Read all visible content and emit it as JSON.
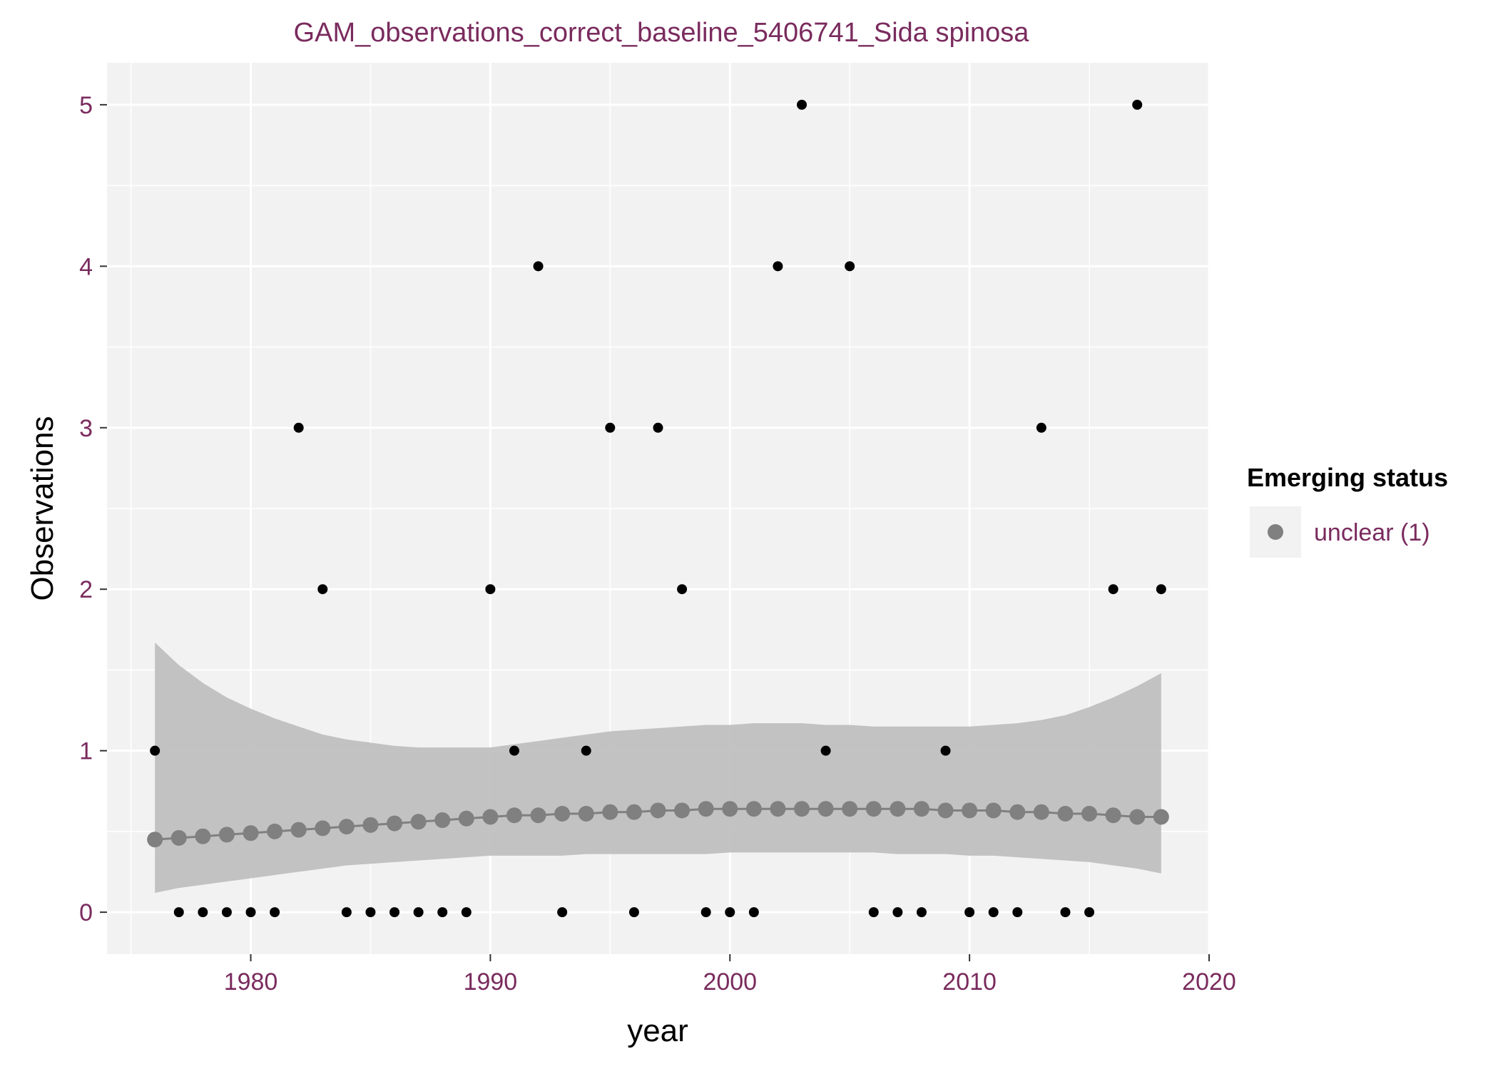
{
  "chart_data": {
    "type": "scatter",
    "title": "GAM_observations_correct_baseline_5406741_Sida spinosa",
    "xlabel": "year",
    "ylabel": "Observations",
    "xlim": [
      1974,
      2020
    ],
    "ylim": [
      -0.26,
      5.26
    ],
    "x_ticks": [
      1980,
      1990,
      2000,
      2010,
      2020
    ],
    "y_ticks": [
      0,
      1,
      2,
      3,
      4,
      5
    ],
    "grid": true,
    "legend": {
      "title": "Emerging status",
      "entries": [
        "unclear (1)"
      ],
      "placement": "right"
    },
    "colors": {
      "panel": "#f2f2f2",
      "grid": "#ffffff",
      "points": "#000000",
      "fit": "#808080",
      "ribbon": "#bdbdbd",
      "text_accent": "#7a2b5e"
    },
    "observations": {
      "x": [
        1976,
        1977,
        1978,
        1979,
        1980,
        1981,
        1982,
        1983,
        1984,
        1985,
        1986,
        1987,
        1988,
        1989,
        1990,
        1991,
        1992,
        1993,
        1994,
        1995,
        1996,
        1997,
        1998,
        1999,
        2000,
        2001,
        2002,
        2003,
        2004,
        2005,
        2006,
        2007,
        2008,
        2009,
        2010,
        2011,
        2012,
        2013,
        2014,
        2015,
        2016,
        2017,
        2018
      ],
      "y": [
        1,
        0,
        0,
        0,
        0,
        0,
        3,
        2,
        0,
        0,
        0,
        0,
        0,
        0,
        2,
        1,
        4,
        0,
        1,
        3,
        0,
        3,
        2,
        0,
        0,
        0,
        4,
        5,
        1,
        4,
        0,
        0,
        0,
        1,
        0,
        0,
        0,
        3,
        0,
        0,
        2,
        5,
        2
      ]
    },
    "series": [
      {
        "name": "unclear (1)",
        "x": [
          1976,
          1977,
          1978,
          1979,
          1980,
          1981,
          1982,
          1983,
          1984,
          1985,
          1986,
          1987,
          1988,
          1989,
          1990,
          1991,
          1992,
          1993,
          1994,
          1995,
          1996,
          1997,
          1998,
          1999,
          2000,
          2001,
          2002,
          2003,
          2004,
          2005,
          2006,
          2007,
          2008,
          2009,
          2010,
          2011,
          2012,
          2013,
          2014,
          2015,
          2016,
          2017,
          2018
        ],
        "fit": [
          0.45,
          0.46,
          0.47,
          0.48,
          0.49,
          0.5,
          0.51,
          0.52,
          0.53,
          0.54,
          0.55,
          0.56,
          0.57,
          0.58,
          0.59,
          0.6,
          0.6,
          0.61,
          0.61,
          0.62,
          0.62,
          0.63,
          0.63,
          0.64,
          0.64,
          0.64,
          0.64,
          0.64,
          0.64,
          0.64,
          0.64,
          0.64,
          0.64,
          0.63,
          0.63,
          0.63,
          0.62,
          0.62,
          0.61,
          0.61,
          0.6,
          0.59,
          0.59
        ],
        "lower": [
          0.12,
          0.15,
          0.17,
          0.19,
          0.21,
          0.23,
          0.25,
          0.27,
          0.29,
          0.3,
          0.31,
          0.32,
          0.33,
          0.34,
          0.35,
          0.35,
          0.35,
          0.35,
          0.36,
          0.36,
          0.36,
          0.36,
          0.36,
          0.36,
          0.37,
          0.37,
          0.37,
          0.37,
          0.37,
          0.37,
          0.37,
          0.36,
          0.36,
          0.36,
          0.35,
          0.35,
          0.34,
          0.33,
          0.32,
          0.31,
          0.29,
          0.27,
          0.24
        ],
        "upper": [
          1.67,
          1.53,
          1.42,
          1.33,
          1.26,
          1.2,
          1.15,
          1.1,
          1.07,
          1.05,
          1.03,
          1.02,
          1.02,
          1.02,
          1.02,
          1.04,
          1.06,
          1.08,
          1.1,
          1.12,
          1.13,
          1.14,
          1.15,
          1.16,
          1.16,
          1.17,
          1.17,
          1.17,
          1.16,
          1.16,
          1.15,
          1.15,
          1.15,
          1.15,
          1.15,
          1.16,
          1.17,
          1.19,
          1.22,
          1.27,
          1.33,
          1.4,
          1.48
        ]
      }
    ]
  }
}
